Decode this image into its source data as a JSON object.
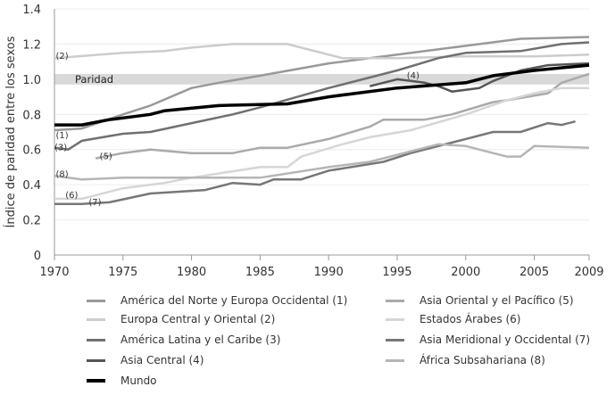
{
  "chart_data": {
    "type": "line",
    "title": "",
    "xlabel": "",
    "ylabel": "Índice de paridad entre los sexos",
    "xlim": [
      1970,
      2009
    ],
    "ylim": [
      0,
      1.4
    ],
    "x_ticks": [
      "1970",
      "1975",
      "1980",
      "1985",
      "1990",
      "1995",
      "2000",
      "2005",
      "2009"
    ],
    "y_ticks": [
      "0",
      "0.2",
      "0.4",
      "0.6",
      "0.8",
      "1.0",
      "1.2",
      "1.4"
    ],
    "grid": "horizontal",
    "legend_position": "bottom",
    "band": {
      "label": "Paridad",
      "from": 0.97,
      "to": 1.03,
      "color": "#d9d9d9"
    },
    "series": [
      {
        "name": "América del Norte y Europa Occidental (1)",
        "label": "(1)",
        "color": "#999999",
        "x": [
          1970,
          1972,
          1975,
          1977,
          1980,
          1982,
          1985,
          1990,
          1995,
          2000,
          2004,
          2009
        ],
        "y": [
          0.71,
          0.72,
          0.8,
          0.85,
          0.95,
          0.98,
          1.02,
          1.09,
          1.14,
          1.19,
          1.23,
          1.24
        ]
      },
      {
        "name": "Europa Central y Oriental (2)",
        "label": "(2)",
        "color": "#cccccc",
        "x": [
          1970,
          1975,
          1978,
          1980,
          1983,
          1987,
          1988,
          1991,
          1995,
          2000,
          2005,
          2009
        ],
        "y": [
          1.12,
          1.15,
          1.16,
          1.18,
          1.2,
          1.2,
          1.18,
          1.12,
          1.12,
          1.13,
          1.13,
          1.14
        ]
      },
      {
        "name": "América Latina y el Caribe (3)",
        "label": "(3)",
        "color": "#707070",
        "x": [
          1970,
          1971,
          1972,
          1975,
          1977,
          1980,
          1983,
          1985,
          1990,
          1995,
          1998,
          2000,
          2004,
          2007,
          2009
        ],
        "y": [
          0.61,
          0.6,
          0.65,
          0.69,
          0.7,
          0.75,
          0.8,
          0.84,
          0.95,
          1.05,
          1.12,
          1.15,
          1.16,
          1.2,
          1.21
        ]
      },
      {
        "name": "Asia Central (4)",
        "label": "(4)",
        "color": "#555555",
        "x": [
          1993,
          1995,
          1996,
          1997,
          1998,
          1999,
          2001,
          2002,
          2004,
          2006,
          2009
        ],
        "y": [
          0.96,
          1.0,
          0.99,
          0.98,
          0.96,
          0.93,
          0.95,
          0.99,
          1.05,
          1.08,
          1.09
        ]
      },
      {
        "name": "Asia Oriental y el Pacífico (5)",
        "label": "(5)",
        "color": "#aaaaaa",
        "x": [
          1973,
          1975,
          1977,
          1980,
          1983,
          1985,
          1987,
          1990,
          1993,
          1994,
          1997,
          1999,
          2002,
          2003,
          2006,
          2007,
          2009
        ],
        "y": [
          0.55,
          0.58,
          0.6,
          0.58,
          0.58,
          0.61,
          0.61,
          0.66,
          0.73,
          0.77,
          0.77,
          0.8,
          0.87,
          0.88,
          0.92,
          0.98,
          1.03
        ]
      },
      {
        "name": "Estados Árabes (6)",
        "label": "(6)",
        "color": "#d6d6d6",
        "x": [
          1970,
          1972,
          1975,
          1978,
          1980,
          1985,
          1987,
          1988,
          1991,
          1993,
          1996,
          2000,
          2003,
          2005,
          2007,
          2009
        ],
        "y": [
          0.32,
          0.32,
          0.38,
          0.41,
          0.44,
          0.5,
          0.5,
          0.56,
          0.63,
          0.67,
          0.71,
          0.8,
          0.88,
          0.92,
          0.95,
          0.95
        ]
      },
      {
        "name": "Asia Meridional y Occidental (7)",
        "label": "(7)",
        "color": "#777777",
        "x": [
          1970,
          1972,
          1974,
          1977,
          1981,
          1983,
          1985,
          1986,
          1988,
          1990,
          1994,
          1996,
          2000,
          2002,
          2004,
          2006,
          2007,
          2008
        ],
        "y": [
          0.29,
          0.29,
          0.3,
          0.35,
          0.37,
          0.41,
          0.4,
          0.43,
          0.43,
          0.48,
          0.53,
          0.58,
          0.66,
          0.7,
          0.7,
          0.75,
          0.74,
          0.76
        ]
      },
      {
        "name": "África Subsahariana (8)",
        "label": "(8)",
        "color": "#b5b5b5",
        "x": [
          1970,
          1972,
          1975,
          1980,
          1985,
          1990,
          1993,
          1996,
          1998,
          2000,
          2002,
          2003,
          2004,
          2005,
          2009
        ],
        "y": [
          0.45,
          0.43,
          0.44,
          0.44,
          0.44,
          0.5,
          0.53,
          0.59,
          0.63,
          0.62,
          0.58,
          0.56,
          0.56,
          0.62,
          0.61
        ]
      },
      {
        "name": "Mundo",
        "label": "",
        "color": "#000000",
        "x": [
          1970,
          1972,
          1974,
          1976,
          1977,
          1978,
          1982,
          1987,
          1990,
          1995,
          2000,
          2002,
          2005,
          2009
        ],
        "y": [
          0.74,
          0.74,
          0.77,
          0.79,
          0.8,
          0.82,
          0.85,
          0.86,
          0.9,
          0.95,
          0.98,
          1.02,
          1.05,
          1.08
        ]
      }
    ]
  }
}
